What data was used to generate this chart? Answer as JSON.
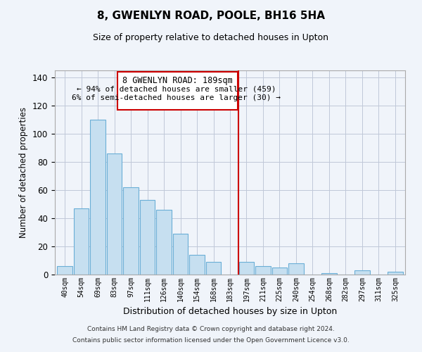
{
  "title": "8, GWENLYN ROAD, POOLE, BH16 5HA",
  "subtitle": "Size of property relative to detached houses in Upton",
  "xlabel": "Distribution of detached houses by size in Upton",
  "ylabel": "Number of detached properties",
  "categories": [
    "40sqm",
    "54sqm",
    "69sqm",
    "83sqm",
    "97sqm",
    "111sqm",
    "126sqm",
    "140sqm",
    "154sqm",
    "168sqm",
    "183sqm",
    "197sqm",
    "211sqm",
    "225sqm",
    "240sqm",
    "254sqm",
    "268sqm",
    "282sqm",
    "297sqm",
    "311sqm",
    "325sqm"
  ],
  "values": [
    6,
    47,
    110,
    86,
    62,
    53,
    46,
    29,
    14,
    9,
    0,
    9,
    6,
    5,
    8,
    0,
    1,
    0,
    3,
    0,
    2
  ],
  "bar_color": "#c6dff0",
  "bar_edge_color": "#6aaed6",
  "vline_color": "#cc0000",
  "annotation_title": "8 GWENLYN ROAD: 189sqm",
  "annotation_line1": "← 94% of detached houses are smaller (459)",
  "annotation_line2": "6% of semi-detached houses are larger (30) →",
  "annotation_box_color": "#ffffff",
  "annotation_box_edge": "#cc0000",
  "ylim": [
    0,
    145
  ],
  "yticks": [
    0,
    20,
    40,
    60,
    80,
    100,
    120,
    140
  ],
  "footer1": "Contains HM Land Registry data © Crown copyright and database right 2024.",
  "footer2": "Contains public sector information licensed under the Open Government Licence v3.0.",
  "bg_color": "#f0f4fa",
  "grid_color": "#c0c8d8"
}
